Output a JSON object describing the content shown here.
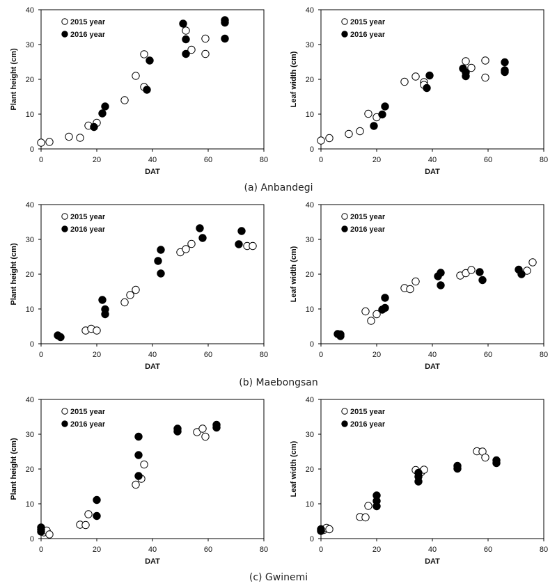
{
  "legend": {
    "open_label": "2015 year",
    "filled_label": "2016 year"
  },
  "x_label": "DAT",
  "xlim": [
    0,
    80
  ],
  "ylim": [
    0,
    40
  ],
  "x_ticks": [
    0,
    20,
    40,
    60,
    80
  ],
  "y_ticks": [
    0,
    10,
    20,
    30,
    40
  ],
  "rows": [
    {
      "caption": "(a) Anbandegi"
    },
    {
      "caption": "(b) Maebongsan"
    },
    {
      "caption": "(c) Gwinemi"
    }
  ],
  "chart_data": [
    {
      "type": "scatter",
      "site": "Anbandegi",
      "ylabel": "Plant height (cm)",
      "xlabel": "DAT",
      "xlim": [
        0,
        80
      ],
      "ylim": [
        0,
        40
      ],
      "series": [
        {
          "name": "2015 year",
          "marker": "open",
          "x": [
            0,
            3,
            10,
            14,
            17,
            20,
            30,
            34,
            37,
            37,
            52,
            54,
            59,
            59
          ],
          "y": [
            1.8,
            2.0,
            3.5,
            3.2,
            6.7,
            7.5,
            14.0,
            21.0,
            27.2,
            17.8,
            34.0,
            28.5,
            31.7,
            27.3
          ]
        },
        {
          "name": "2016 year",
          "marker": "filled",
          "x": [
            19,
            22,
            23,
            38,
            39,
            51,
            52,
            52,
            66,
            66,
            66
          ],
          "y": [
            6.3,
            10.2,
            12.2,
            17.0,
            25.4,
            36.0,
            31.5,
            27.3,
            37.0,
            36.3,
            31.7
          ]
        }
      ]
    },
    {
      "type": "scatter",
      "site": "Anbandegi",
      "ylabel": "Leaf width (cm)",
      "xlabel": "DAT",
      "xlim": [
        0,
        80
      ],
      "ylim": [
        0,
        40
      ],
      "series": [
        {
          "name": "2015 year",
          "marker": "open",
          "x": [
            0,
            3,
            10,
            14,
            17,
            20,
            30,
            34,
            37,
            37,
            52,
            54,
            59,
            59
          ],
          "y": [
            2.4,
            3.1,
            4.3,
            5.1,
            10.1,
            9.1,
            19.3,
            20.8,
            19.2,
            18.4,
            25.2,
            23.3,
            25.4,
            20.5
          ]
        },
        {
          "name": "2016 year",
          "marker": "filled",
          "x": [
            19,
            22,
            23,
            38,
            39,
            51,
            52,
            52,
            66,
            66,
            66
          ],
          "y": [
            6.6,
            9.9,
            12.2,
            17.5,
            21.1,
            23.1,
            22.0,
            20.9,
            24.9,
            22.6,
            22.1
          ]
        }
      ]
    },
    {
      "type": "scatter",
      "site": "Maebongsan",
      "ylabel": "Plant height (cm)",
      "xlabel": "DAT",
      "xlim": [
        0,
        80
      ],
      "ylim": [
        0,
        40
      ],
      "series": [
        {
          "name": "2015 year",
          "marker": "open",
          "x": [
            16,
            18,
            20,
            30,
            32,
            34,
            50,
            52,
            54,
            74,
            76
          ],
          "y": [
            3.8,
            4.3,
            3.8,
            11.9,
            14.0,
            15.5,
            26.3,
            27.2,
            28.7,
            28.1,
            28.1
          ]
        },
        {
          "name": "2016 year",
          "marker": "filled",
          "x": [
            6,
            7,
            22,
            23,
            23,
            42,
            43,
            43,
            57,
            58,
            71,
            72
          ],
          "y": [
            2.4,
            1.9,
            12.6,
            9.9,
            8.5,
            23.8,
            27.0,
            20.2,
            33.2,
            30.4,
            28.6,
            32.4
          ]
        }
      ]
    },
    {
      "type": "scatter",
      "site": "Maebongsan",
      "ylabel": "Leaf width (cm)",
      "xlabel": "DAT",
      "xlim": [
        0,
        80
      ],
      "ylim": [
        0,
        40
      ],
      "series": [
        {
          "name": "2015 year",
          "marker": "open",
          "x": [
            16,
            18,
            20,
            30,
            32,
            34,
            50,
            52,
            54,
            74,
            76
          ],
          "y": [
            9.3,
            6.6,
            8.5,
            16.0,
            15.7,
            17.9,
            19.6,
            20.3,
            21.2,
            21.0,
            23.4
          ]
        },
        {
          "name": "2016 year",
          "marker": "filled",
          "x": [
            6,
            7,
            7,
            22,
            23,
            23,
            42,
            43,
            43,
            57,
            58,
            71,
            72
          ],
          "y": [
            2.8,
            2.2,
            2.7,
            9.8,
            10.3,
            13.2,
            19.4,
            20.4,
            16.8,
            20.6,
            18.3,
            21.3,
            20.0
          ]
        }
      ]
    },
    {
      "type": "scatter",
      "site": "Gwinemi",
      "ylabel": "Plant height (cm)",
      "xlabel": "DAT",
      "xlim": [
        0,
        80
      ],
      "ylim": [
        0,
        40
      ],
      "series": [
        {
          "name": "2015 year",
          "marker": "open",
          "x": [
            1,
            2,
            3,
            14,
            16,
            17,
            34,
            36,
            37,
            56,
            58,
            59
          ],
          "y": [
            1.8,
            2.3,
            1.2,
            4.0,
            3.9,
            7.0,
            15.5,
            17.2,
            21.3,
            30.6,
            31.6,
            29.3
          ]
        },
        {
          "name": "2016 year",
          "marker": "filled",
          "x": [
            0,
            0,
            0,
            20,
            20,
            35,
            35,
            35,
            49,
            49,
            63,
            63
          ],
          "y": [
            3.2,
            2.6,
            2.0,
            11.1,
            6.5,
            29.3,
            24.0,
            18.0,
            31.6,
            30.8,
            32.7,
            31.9
          ]
        }
      ]
    },
    {
      "type": "scatter",
      "site": "Gwinemi",
      "ylabel": "Leaf width (cm)",
      "xlabel": "DAT",
      "xlim": [
        0,
        80
      ],
      "ylim": [
        0,
        40
      ],
      "series": [
        {
          "name": "2015 year",
          "marker": "open",
          "x": [
            1,
            2,
            3,
            14,
            16,
            17,
            34,
            36,
            37,
            56,
            58,
            59
          ],
          "y": [
            2.5,
            3.1,
            2.7,
            6.2,
            6.1,
            9.4,
            19.7,
            19.1,
            19.8,
            25.1,
            25.0,
            23.3
          ]
        },
        {
          "name": "2016 year",
          "marker": "filled",
          "x": [
            0,
            0,
            20,
            20,
            20,
            35,
            35,
            35,
            49,
            49,
            63,
            63
          ],
          "y": [
            2.7,
            2.2,
            12.4,
            10.8,
            9.3,
            18.9,
            17.8,
            16.4,
            20.9,
            20.1,
            22.5,
            21.7
          ]
        }
      ]
    }
  ]
}
